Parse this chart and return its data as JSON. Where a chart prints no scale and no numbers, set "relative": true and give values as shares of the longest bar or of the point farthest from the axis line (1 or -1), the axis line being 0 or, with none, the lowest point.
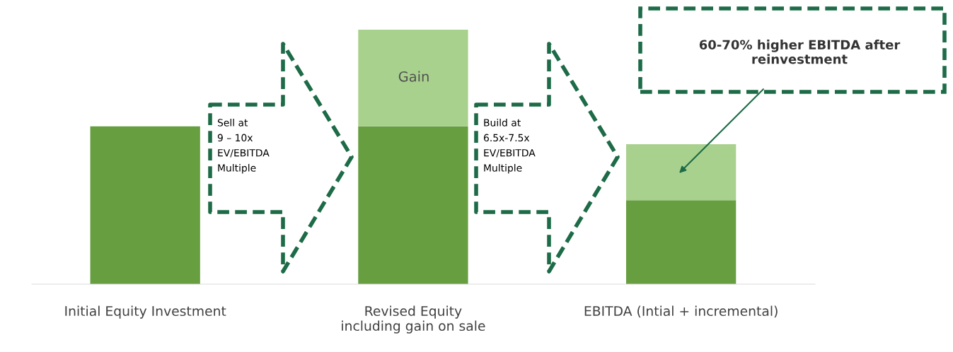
{
  "chart_data": {
    "type": "bar",
    "stacked": true,
    "relative": true,
    "categories": [
      "Initial Equity Investment",
      "Revised Equity\nincluding gain on sale",
      "EBITDA (Intial + incremental)"
    ],
    "series": [
      {
        "color": "#669e40",
        "values": [
          0.62,
          0.62,
          0.33
        ]
      },
      {
        "color": "#a9d18e",
        "values": [
          0,
          0.38,
          0.22
        ]
      }
    ],
    "annotations": [
      "Gain",
      "Sell at\n9 – 10x\nEV/EBITDA\nMultiple",
      "Build at\n6.5x-7.5x\nEV/EBITDA\nMultiple",
      "60-70% higher EBITDA after\nreinvestment"
    ],
    "legend": false,
    "grid": false
  }
}
